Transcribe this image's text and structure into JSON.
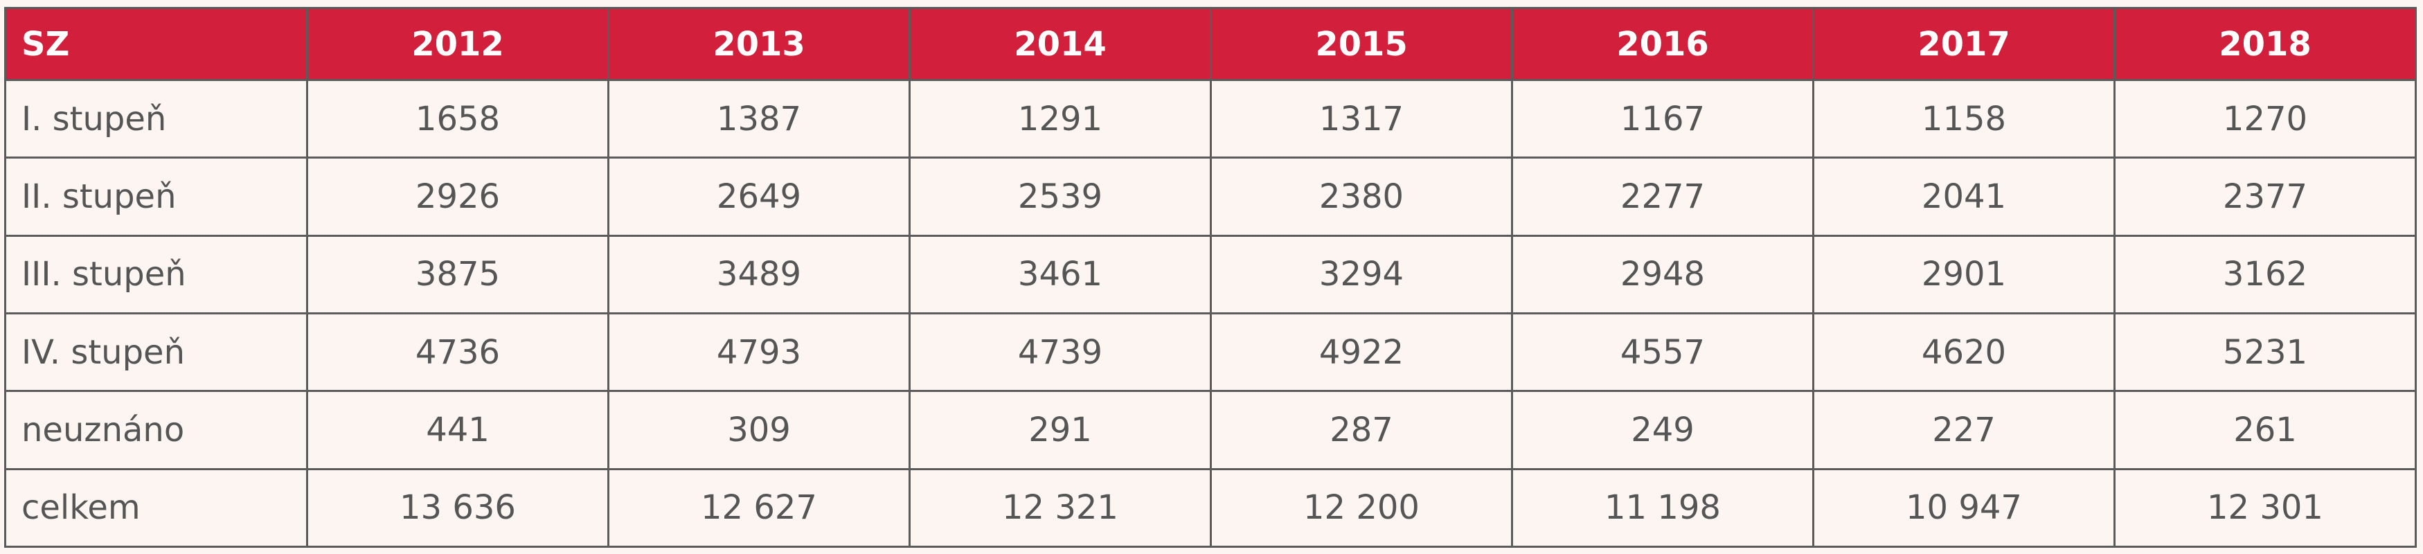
{
  "table": {
    "corner_label": "SZ",
    "years": [
      "2012",
      "2013",
      "2014",
      "2015",
      "2016",
      "2017",
      "2018"
    ],
    "rows": [
      {
        "label": "I. stupeň",
        "values": [
          "1658",
          "1387",
          "1291",
          "1317",
          "1167",
          "1158",
          "1270"
        ]
      },
      {
        "label": "II. stupeň",
        "values": [
          "2926",
          "2649",
          "2539",
          "2380",
          "2277",
          "2041",
          "2377"
        ]
      },
      {
        "label": "III. stupeň",
        "values": [
          "3875",
          "3489",
          "3461",
          "3294",
          "2948",
          "2901",
          "3162"
        ]
      },
      {
        "label": "IV. stupeň",
        "values": [
          "4736",
          "4793",
          "4739",
          "4922",
          "4557",
          "4620",
          "5231"
        ]
      },
      {
        "label": "neuznáno",
        "values": [
          "441",
          "309",
          "291",
          "287",
          "249",
          "227",
          "261"
        ]
      },
      {
        "label": "celkem",
        "values": [
          "13 636",
          "12 627",
          "12 321",
          "12 200",
          "11 198",
          "10 947",
          "12 301"
        ]
      }
    ]
  },
  "colors": {
    "header_bg": "#d21f3c",
    "header_text": "#ffffff",
    "body_bg": "#fdf5f1",
    "body_text": "#555555",
    "border": "#5b5b5b"
  }
}
